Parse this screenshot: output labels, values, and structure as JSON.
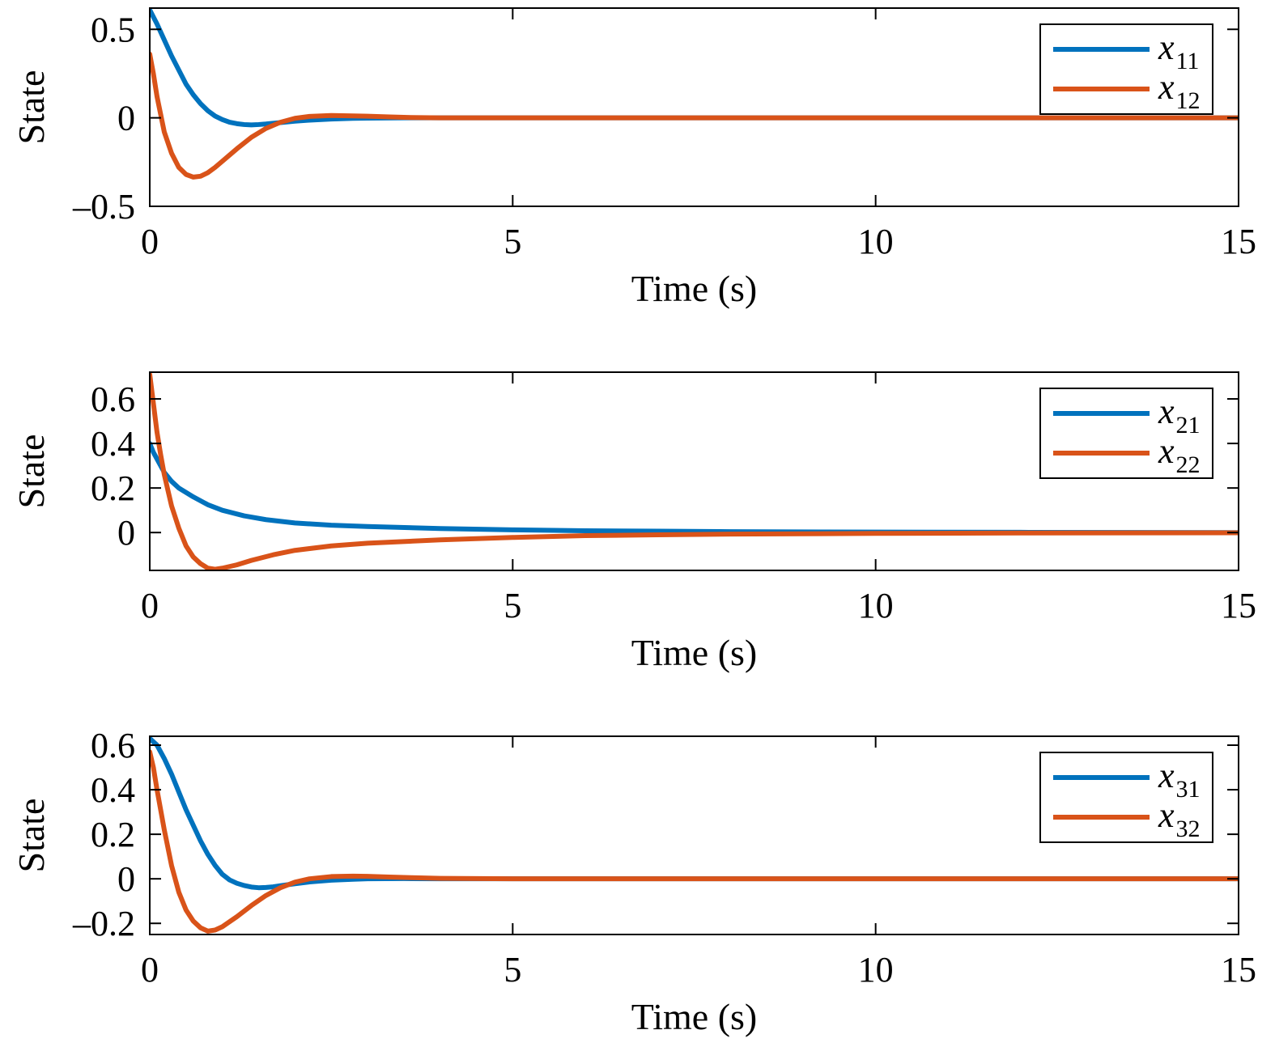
{
  "colors": {
    "series_1": "#0072BD",
    "series_2": "#D95319",
    "axes": "#000000",
    "background": "#ffffff"
  },
  "chart_data": [
    {
      "type": "line",
      "xlabel": "Time (s)",
      "ylabel": "State",
      "xlim": [
        0,
        15
      ],
      "ylim": [
        -0.5,
        0.62
      ],
      "xticks": [
        0,
        5,
        10,
        15
      ],
      "xtick_labels": [
        "0",
        "5",
        "10",
        "15"
      ],
      "yticks": [
        -0.5,
        0,
        0.5
      ],
      "ytick_labels": [
        "–0.5",
        "0",
        "0.5"
      ],
      "grid": false,
      "legend_position": "top-right",
      "series": [
        {
          "name": "x11",
          "legend_main": "x",
          "legend_sub": "11",
          "color": "#0072BD",
          "x": [
            0,
            0.1,
            0.2,
            0.3,
            0.4,
            0.5,
            0.6,
            0.7,
            0.8,
            0.9,
            1.0,
            1.1,
            1.2,
            1.3,
            1.4,
            1.5,
            1.6,
            1.8,
            2.0,
            2.2,
            2.5,
            2.8,
            3.0,
            3.5,
            4.0,
            5.0,
            7.0,
            10.0,
            15.0
          ],
          "y": [
            0.61,
            0.53,
            0.44,
            0.35,
            0.27,
            0.19,
            0.13,
            0.08,
            0.04,
            0.01,
            -0.01,
            -0.025,
            -0.033,
            -0.038,
            -0.04,
            -0.038,
            -0.035,
            -0.027,
            -0.019,
            -0.013,
            -0.007,
            -0.003,
            -0.002,
            0.0,
            0.0,
            0.0,
            0.0,
            0.0,
            0.0
          ]
        },
        {
          "name": "x12",
          "legend_main": "x",
          "legend_sub": "12",
          "color": "#D95319",
          "x": [
            0,
            0.05,
            0.1,
            0.2,
            0.3,
            0.4,
            0.5,
            0.6,
            0.7,
            0.8,
            0.9,
            1.0,
            1.2,
            1.4,
            1.6,
            1.8,
            2.0,
            2.2,
            2.5,
            2.8,
            3.0,
            3.3,
            3.6,
            4.0,
            5.0,
            7.0,
            10.0,
            15.0
          ],
          "y": [
            0.36,
            0.25,
            0.12,
            -0.08,
            -0.2,
            -0.28,
            -0.32,
            -0.335,
            -0.33,
            -0.31,
            -0.28,
            -0.245,
            -0.175,
            -0.11,
            -0.06,
            -0.025,
            -0.003,
            0.008,
            0.013,
            0.011,
            0.009,
            0.005,
            0.002,
            0.0,
            0.0,
            0.0,
            0.0,
            0.0
          ]
        }
      ]
    },
    {
      "type": "line",
      "xlabel": "Time (s)",
      "ylabel": "State",
      "xlim": [
        0,
        15
      ],
      "ylim": [
        -0.17,
        0.72
      ],
      "xticks": [
        0,
        5,
        10,
        15
      ],
      "xtick_labels": [
        "0",
        "5",
        "10",
        "15"
      ],
      "yticks": [
        0,
        0.2,
        0.4,
        0.6
      ],
      "ytick_labels": [
        "0",
        "0.2",
        "0.4",
        "0.6"
      ],
      "grid": false,
      "legend_position": "top-right",
      "series": [
        {
          "name": "x21",
          "legend_main": "x",
          "legend_sub": "21",
          "color": "#0072BD",
          "x": [
            0,
            0.05,
            0.1,
            0.2,
            0.3,
            0.4,
            0.6,
            0.8,
            1.0,
            1.3,
            1.6,
            2.0,
            2.5,
            3.0,
            4.0,
            5.0,
            6.0,
            7.0,
            8.0,
            10.0,
            12.0,
            15.0
          ],
          "y": [
            0.4,
            0.36,
            0.33,
            0.27,
            0.23,
            0.2,
            0.16,
            0.125,
            0.1,
            0.075,
            0.058,
            0.043,
            0.033,
            0.027,
            0.018,
            0.012,
            0.008,
            0.006,
            0.004,
            0.002,
            0.001,
            0.0
          ]
        },
        {
          "name": "x22",
          "legend_main": "x",
          "legend_sub": "22",
          "color": "#D95319",
          "x": [
            0,
            0.05,
            0.1,
            0.15,
            0.2,
            0.3,
            0.4,
            0.5,
            0.6,
            0.7,
            0.8,
            0.9,
            1.0,
            1.2,
            1.4,
            1.7,
            2.0,
            2.5,
            3.0,
            4.0,
            5.0,
            6.0,
            7.0,
            8.0,
            10.0,
            12.0,
            15.0
          ],
          "y": [
            0.71,
            0.58,
            0.45,
            0.35,
            0.26,
            0.12,
            0.02,
            -0.06,
            -0.11,
            -0.14,
            -0.16,
            -0.165,
            -0.16,
            -0.145,
            -0.125,
            -0.1,
            -0.08,
            -0.06,
            -0.048,
            -0.033,
            -0.022,
            -0.014,
            -0.01,
            -0.007,
            -0.004,
            -0.002,
            -0.001
          ]
        }
      ]
    },
    {
      "type": "line",
      "xlabel": "Time (s)",
      "ylabel": "State",
      "xlim": [
        0,
        15
      ],
      "ylim": [
        -0.25,
        0.64
      ],
      "xticks": [
        0,
        5,
        10,
        15
      ],
      "xtick_labels": [
        "0",
        "5",
        "10",
        "15"
      ],
      "yticks": [
        -0.2,
        0,
        0.2,
        0.4,
        0.6
      ],
      "ytick_labels": [
        "–0.2",
        "0",
        "0.2",
        "0.4",
        "0.6"
      ],
      "grid": false,
      "legend_position": "top-right",
      "series": [
        {
          "name": "x31",
          "legend_main": "x",
          "legend_sub": "31",
          "color": "#0072BD",
          "x": [
            0,
            0.1,
            0.2,
            0.3,
            0.4,
            0.5,
            0.6,
            0.7,
            0.8,
            0.9,
            1.0,
            1.1,
            1.2,
            1.3,
            1.4,
            1.5,
            1.6,
            1.7,
            1.8,
            2.0,
            2.2,
            2.5,
            2.8,
            3.0,
            3.5,
            4.0,
            5.0,
            10.0,
            15.0
          ],
          "y": [
            0.63,
            0.6,
            0.54,
            0.47,
            0.39,
            0.31,
            0.24,
            0.17,
            0.11,
            0.06,
            0.02,
            -0.005,
            -0.02,
            -0.03,
            -0.037,
            -0.04,
            -0.039,
            -0.036,
            -0.031,
            -0.022,
            -0.014,
            -0.006,
            -0.002,
            0.0,
            0.001,
            0.0,
            0.0,
            0.0,
            0.0
          ]
        },
        {
          "name": "x32",
          "legend_main": "x",
          "legend_sub": "32",
          "color": "#D95319",
          "x": [
            0,
            0.05,
            0.1,
            0.2,
            0.3,
            0.4,
            0.5,
            0.6,
            0.7,
            0.8,
            0.9,
            1.0,
            1.2,
            1.4,
            1.6,
            1.8,
            2.0,
            2.2,
            2.5,
            2.8,
            3.0,
            3.3,
            3.6,
            4.0,
            5.0,
            10.0,
            15.0
          ],
          "y": [
            0.57,
            0.5,
            0.4,
            0.22,
            0.06,
            -0.06,
            -0.14,
            -0.19,
            -0.22,
            -0.235,
            -0.23,
            -0.215,
            -0.17,
            -0.12,
            -0.075,
            -0.04,
            -0.015,
            0.0,
            0.01,
            0.012,
            0.011,
            0.008,
            0.005,
            0.002,
            0.0,
            0.0,
            0.0
          ]
        }
      ]
    }
  ]
}
